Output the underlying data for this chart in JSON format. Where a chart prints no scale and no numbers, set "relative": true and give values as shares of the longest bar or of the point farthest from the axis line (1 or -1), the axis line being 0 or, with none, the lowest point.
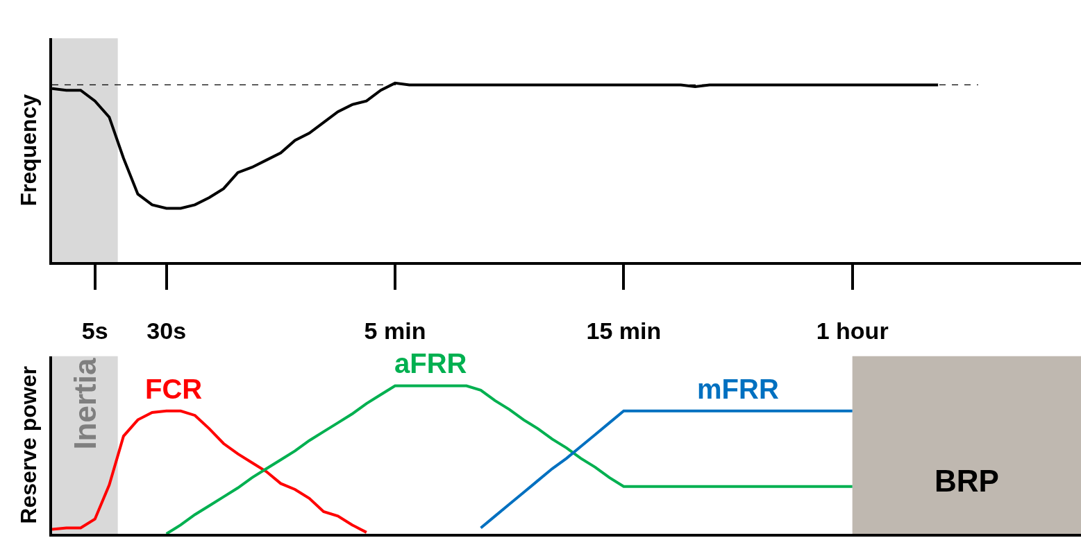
{
  "chart_data": [
    {
      "type": "line",
      "relative": true,
      "ylabel": "Frequency",
      "tick_labels": "x",
      "categories": [
        null,
        null,
        null,
        "5s",
        null,
        null,
        null,
        null,
        "30s",
        null,
        null,
        null,
        null,
        null,
        null,
        null,
        null,
        null,
        null,
        null,
        null,
        null,
        null,
        null,
        "5 min",
        null,
        null,
        null,
        null,
        null,
        null,
        null,
        null,
        null,
        null,
        null,
        null,
        null,
        null,
        null,
        "15 min",
        null,
        null,
        null,
        null,
        null,
        null,
        null,
        null,
        null,
        null,
        null,
        null,
        null,
        null,
        null,
        "1 hour",
        null,
        null,
        null,
        null,
        null,
        null,
        null,
        null,
        null,
        null,
        null,
        null,
        null,
        null,
        null,
        null
      ],
      "series": [
        {
          "color": "#000000",
          "values": [
            0.97,
            0.96,
            0.96,
            0.9,
            0.81,
            0.58,
            0.38,
            0.32,
            0.3,
            0.3,
            0.32,
            0.36,
            0.41,
            0.5,
            0.53,
            0.57,
            0.61,
            0.68,
            0.72,
            0.78,
            0.84,
            0.88,
            0.9,
            0.96,
            1,
            0.99,
            0.99,
            0.99,
            0.99,
            0.99,
            0.99,
            0.99,
            0.99,
            0.99,
            0.99,
            0.99,
            0.99,
            0.99,
            0.99,
            0.99,
            0.99,
            0.99,
            0.99,
            0.99,
            0.99,
            0.98,
            0.99,
            0.99,
            0.99,
            0.99,
            0.99,
            0.99,
            0.99,
            0.99,
            0.99,
            0.99,
            0.99,
            0.99,
            0.99,
            0.99,
            0.99,
            0.99,
            0.99,
            null,
            null,
            null,
            null,
            null,
            null,
            null,
            null,
            null,
            null
          ]
        }
      ],
      "ref_lines": [
        {
          "axis": "y",
          "value": 0.99,
          "color": "#000000",
          "line_style": "dashed"
        }
      ]
    },
    {
      "type": "line",
      "relative": true,
      "ylabel": "Reserve power",
      "tick_labels": false,
      "categories": [
        null,
        null,
        null,
        null,
        null,
        null,
        null,
        null,
        null,
        null,
        null,
        null,
        null,
        null,
        null,
        null,
        null,
        null,
        null,
        null,
        null,
        null,
        null,
        null,
        null,
        null,
        null,
        null,
        null,
        null,
        null,
        null,
        null,
        null,
        null,
        null,
        null,
        null,
        null,
        null,
        null,
        null,
        null,
        null,
        null,
        null,
        null,
        null,
        null,
        null,
        null,
        null,
        null,
        null,
        null,
        null,
        null,
        null,
        null,
        null,
        null,
        null,
        null,
        null,
        null,
        null,
        null,
        null,
        null,
        null,
        null,
        null,
        null
      ],
      "series": [
        {
          "name": "FCR",
          "color": "#ff0000",
          "values": [
            0.03,
            0.04,
            0.04,
            0.1,
            0.33,
            0.66,
            0.77,
            0.82,
            0.83,
            0.83,
            0.8,
            0.71,
            0.61,
            0.54,
            0.48,
            0.42,
            0.34,
            0.3,
            0.24,
            0.15,
            0.12,
            0.06,
            0.01,
            null,
            null,
            null,
            null,
            null,
            null,
            null,
            null,
            null,
            null,
            null,
            null,
            null,
            null,
            null,
            null,
            null,
            null,
            null,
            null,
            null,
            null,
            null,
            null,
            null,
            null,
            null,
            null,
            null,
            null,
            null,
            null,
            null,
            null,
            null,
            null,
            null,
            null,
            null,
            null,
            null,
            null,
            null,
            null,
            null,
            null,
            null,
            null,
            null,
            null
          ]
        },
        {
          "name": "aFRR",
          "color": "#00b050",
          "values": [
            null,
            null,
            null,
            null,
            null,
            null,
            null,
            null,
            0,
            0.06,
            0.13,
            0.19,
            0.25,
            0.31,
            0.38,
            0.44,
            0.5,
            0.56,
            0.63,
            0.69,
            0.75,
            0.81,
            0.88,
            0.94,
            1,
            1,
            1,
            1,
            1,
            1,
            0.97,
            0.9,
            0.84,
            0.77,
            0.71,
            0.64,
            0.58,
            0.51,
            0.45,
            0.38,
            0.32,
            0.32,
            0.32,
            0.32,
            0.32,
            0.32,
            0.32,
            0.32,
            0.32,
            0.32,
            0.32,
            0.32,
            0.32,
            0.32,
            0.32,
            0.32,
            0.32,
            null,
            null,
            null,
            null,
            null,
            null,
            null,
            null,
            null,
            null,
            null,
            null,
            null,
            null,
            null,
            null
          ]
        },
        {
          "name": "mFRR",
          "color": "#0070c0",
          "values": [
            null,
            null,
            null,
            null,
            null,
            null,
            null,
            null,
            null,
            null,
            null,
            null,
            null,
            null,
            null,
            null,
            null,
            null,
            null,
            null,
            null,
            null,
            null,
            null,
            null,
            null,
            null,
            null,
            null,
            null,
            0.04,
            0.12,
            0.2,
            0.28,
            0.36,
            0.44,
            0.51,
            0.59,
            0.67,
            0.75,
            0.83,
            0.83,
            0.83,
            0.83,
            0.83,
            0.83,
            0.83,
            0.83,
            0.83,
            0.83,
            0.83,
            0.83,
            0.83,
            0.83,
            0.83,
            0.83,
            0.83,
            null,
            null,
            null,
            null,
            null,
            null,
            null,
            null,
            null,
            null,
            null,
            null,
            null,
            null,
            null,
            null
          ]
        }
      ],
      "annotations": [
        "Inertia",
        "BRP"
      ]
    }
  ]
}
